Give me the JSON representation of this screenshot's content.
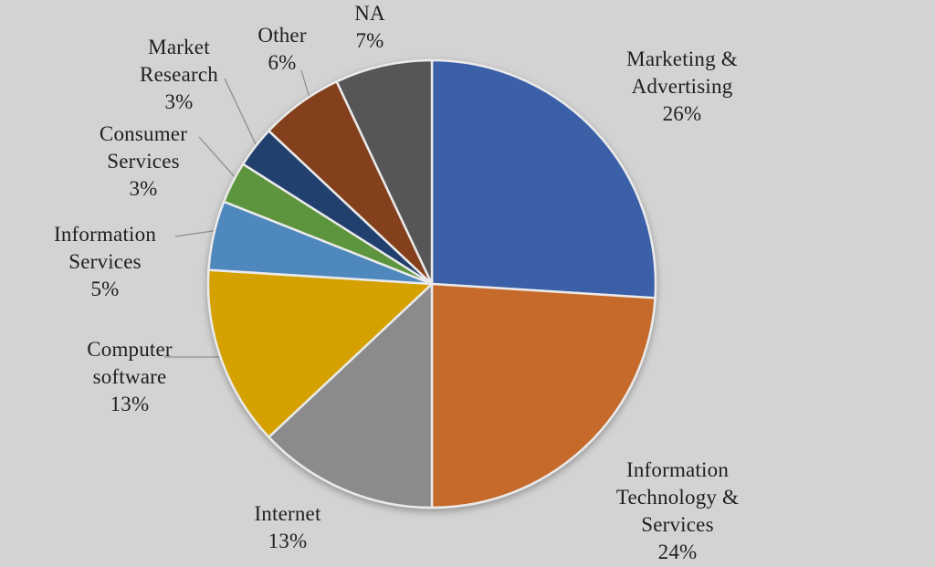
{
  "figure": {
    "background_color": "#D3D3D3",
    "text_color": "#1F1F1F",
    "leader_line_color": "#8F8F8F",
    "slice_separator_color": "#EAEAEA"
  },
  "chart_data": {
    "type": "pie",
    "title": "",
    "start_angle_deg": 0,
    "direction": "clockwise",
    "legend_position": "none",
    "labels_style": "outside-with-percent",
    "categories": [
      "Marketing & Advertising",
      "Information Technology & Services",
      "Internet",
      "Computer software",
      "Information Services",
      "Consumer Services",
      "Market Research",
      "Other",
      "NA"
    ],
    "values": [
      26,
      24,
      13,
      13,
      5,
      3,
      3,
      6,
      7
    ],
    "unit": "%",
    "slices": [
      {
        "name": "Marketing & Advertising",
        "value": 26,
        "color": "#3A61A8",
        "display": "Marketing &\nAdvertising\n26%"
      },
      {
        "name": "Information Technology & Services",
        "value": 24,
        "color": "#C56A2B",
        "display": "Information\nTechnology &\nServices\n24%"
      },
      {
        "name": "Internet",
        "value": 13,
        "color": "#8B8B8B",
        "display": "Internet\n13%"
      },
      {
        "name": "Computer software",
        "value": 13,
        "color": "#D5A100",
        "display": "Computer\nsoftware\n13%"
      },
      {
        "name": "Information Services",
        "value": 5,
        "color": "#4F88BC",
        "display": "Information\nServices\n5%"
      },
      {
        "name": "Consumer Services",
        "value": 3,
        "color": "#5C953D",
        "display": "Consumer\nServices\n3%"
      },
      {
        "name": "Market Research",
        "value": 3,
        "color": "#24406E",
        "display": "Market\nResearch\n3%"
      },
      {
        "name": "Other",
        "value": 6,
        "color": "#84401C",
        "display": "Other\n6%"
      },
      {
        "name": "NA",
        "value": 7,
        "color": "#575757",
        "display": "NA\n7%"
      }
    ]
  }
}
